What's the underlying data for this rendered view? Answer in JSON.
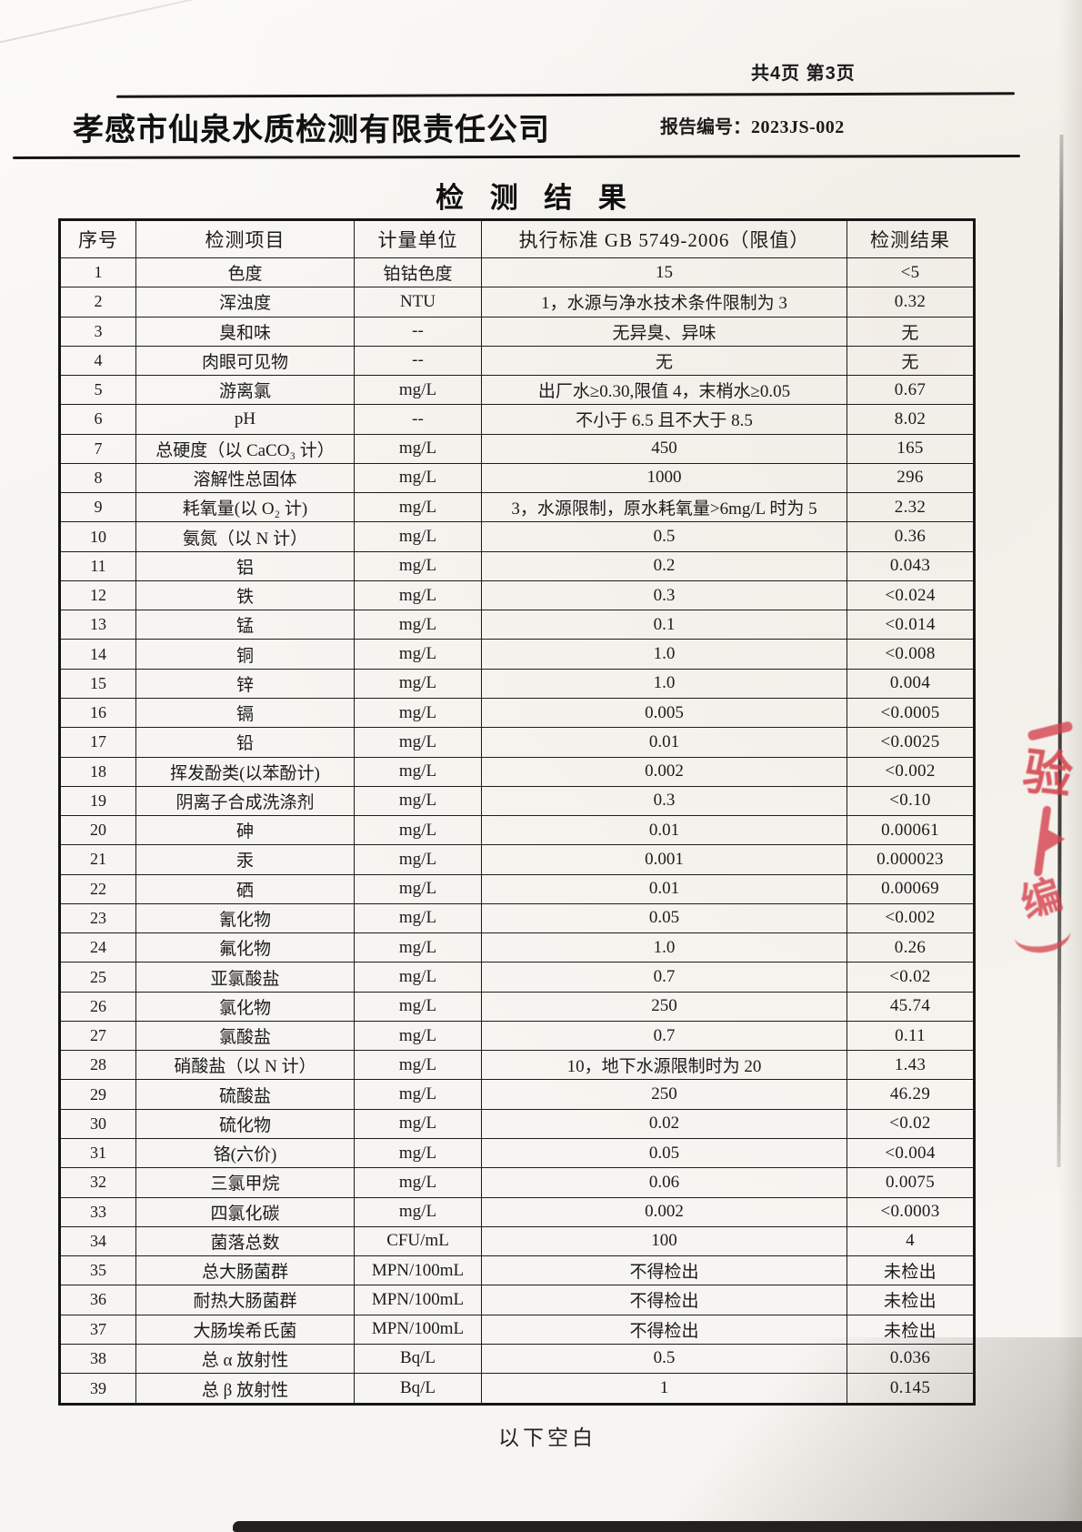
{
  "page": {
    "pagination": "共4页 第3页",
    "company": "孝感市仙泉水质检测有限责任公司",
    "report_no_label": "报告编号：",
    "report_no": "2023JS-002",
    "title": "检 测 结 果",
    "footer_note": "以下空白"
  },
  "table": {
    "headers": [
      "序号",
      "检测项目",
      "计量单位",
      "执行标准 GB 5749-2006（限值）",
      "检测结果"
    ],
    "rows": [
      [
        "1",
        "色度",
        "铂钴色度",
        "15",
        "<5"
      ],
      [
        "2",
        "浑浊度",
        "NTU",
        "1，水源与净水技术条件限制为 3",
        "0.32"
      ],
      [
        "3",
        "臭和味",
        "--",
        "无异臭、异味",
        "无"
      ],
      [
        "4",
        "肉眼可见物",
        "--",
        "无",
        "无"
      ],
      [
        "5",
        "游离氯",
        "mg/L",
        "出厂水≥0.30,限值 4，末梢水≥0.05",
        "0.67"
      ],
      [
        "6",
        "pH",
        "--",
        "不小于 6.5 且不大于 8.5",
        "8.02"
      ],
      [
        "7",
        "总硬度（以 CaCO₃ 计）",
        "mg/L",
        "450",
        "165"
      ],
      [
        "8",
        "溶解性总固体",
        "mg/L",
        "1000",
        "296"
      ],
      [
        "9",
        "耗氧量(以 O₂ 计)",
        "mg/L",
        "3，水源限制，原水耗氧量>6mg/L 时为 5",
        "2.32"
      ],
      [
        "10",
        "氨氮（以 N 计）",
        "mg/L",
        "0.5",
        "0.36"
      ],
      [
        "11",
        "铝",
        "mg/L",
        "0.2",
        "0.043"
      ],
      [
        "12",
        "铁",
        "mg/L",
        "0.3",
        "<0.024"
      ],
      [
        "13",
        "锰",
        "mg/L",
        "0.1",
        "<0.014"
      ],
      [
        "14",
        "铜",
        "mg/L",
        "1.0",
        "<0.008"
      ],
      [
        "15",
        "锌",
        "mg/L",
        "1.0",
        "0.004"
      ],
      [
        "16",
        "镉",
        "mg/L",
        "0.005",
        "<0.0005"
      ],
      [
        "17",
        "铅",
        "mg/L",
        "0.01",
        "<0.0025"
      ],
      [
        "18",
        "挥发酚类(以苯酚计)",
        "mg/L",
        "0.002",
        "<0.002"
      ],
      [
        "19",
        "阴离子合成洗涤剂",
        "mg/L",
        "0.3",
        "<0.10"
      ],
      [
        "20",
        "砷",
        "mg/L",
        "0.01",
        "0.00061"
      ],
      [
        "21",
        "汞",
        "mg/L",
        "0.001",
        "0.000023"
      ],
      [
        "22",
        "硒",
        "mg/L",
        "0.01",
        "0.00069"
      ],
      [
        "23",
        "氰化物",
        "mg/L",
        "0.05",
        "<0.002"
      ],
      [
        "24",
        "氟化物",
        "mg/L",
        "1.0",
        "0.26"
      ],
      [
        "25",
        "亚氯酸盐",
        "mg/L",
        "0.7",
        "<0.02"
      ],
      [
        "26",
        "氯化物",
        "mg/L",
        "250",
        "45.74"
      ],
      [
        "27",
        "氯酸盐",
        "mg/L",
        "0.7",
        "0.11"
      ],
      [
        "28",
        "硝酸盐（以 N 计）",
        "mg/L",
        "10，地下水源限制时为 20",
        "1.43"
      ],
      [
        "29",
        "硫酸盐",
        "mg/L",
        "250",
        "46.29"
      ],
      [
        "30",
        "硫化物",
        "mg/L",
        "0.02",
        "<0.02"
      ],
      [
        "31",
        "铬(六价)",
        "mg/L",
        "0.05",
        "<0.004"
      ],
      [
        "32",
        "三氯甲烷",
        "mg/L",
        "0.06",
        "0.0075"
      ],
      [
        "33",
        "四氯化碳",
        "mg/L",
        "0.002",
        "<0.0003"
      ],
      [
        "34",
        "菌落总数",
        "CFU/mL",
        "100",
        "4"
      ],
      [
        "35",
        "总大肠菌群",
        "MPN/100mL",
        "不得检出",
        "未检出"
      ],
      [
        "36",
        "耐热大肠菌群",
        "MPN/100mL",
        "不得检出",
        "未检出"
      ],
      [
        "37",
        "大肠埃希氏菌",
        "MPN/100mL",
        "不得检出",
        "未检出"
      ],
      [
        "38",
        "总 α 放射性",
        "Bq/L",
        "0.5",
        "0.036"
      ],
      [
        "39",
        "总 β 放射性",
        "Bq/L",
        "1",
        "0.145"
      ]
    ]
  },
  "stamp": {
    "color": "#d5404b",
    "fragment_char_1": "验",
    "fragment_char_2": "编"
  }
}
